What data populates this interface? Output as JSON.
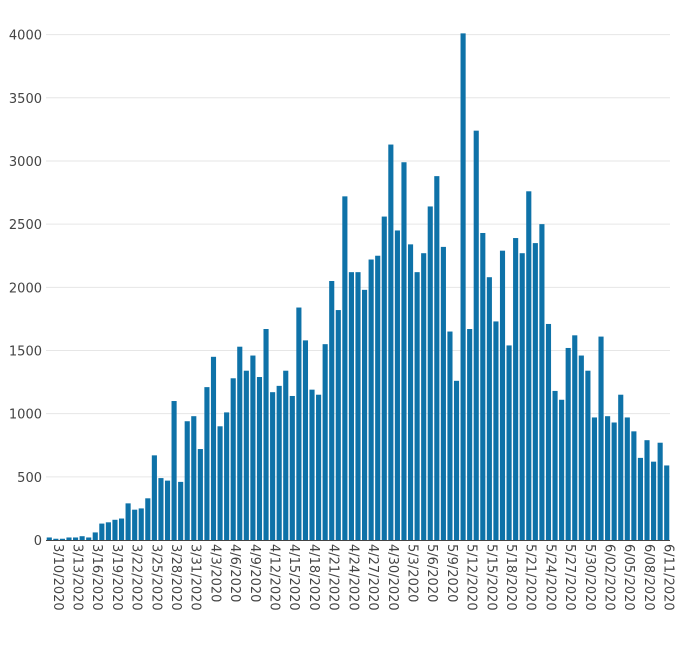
{
  "chart_data": {
    "type": "bar",
    "title": "",
    "xlabel": "",
    "ylabel": "",
    "bar_color": "#0e72a8",
    "grid": true,
    "ylim": [
      0,
      4100
    ],
    "yticks": [
      0,
      500,
      1000,
      1500,
      2000,
      2500,
      3000,
      3500,
      4000
    ],
    "x_tick_labels": [
      "3/10/2020",
      "3/13/2020",
      "3/16/2020",
      "3/19/2020",
      "3/22/2020",
      "3/25/2020",
      "3/28/2020",
      "3/31/2020",
      "4/3/2020",
      "4/6/2020",
      "4/9/2020",
      "4/12/2020",
      "4/15/2020",
      "4/18/2020",
      "4/21/2020",
      "4/24/2020",
      "4/27/2020",
      "4/30/2020",
      "5/3/2020",
      "5/6/2020",
      "5/9/2020",
      "5/12/2020",
      "5/15/2020",
      "5/18/2020",
      "5/21/2020",
      "5/24/2020",
      "5/27/2020",
      "5/30/2020",
      "6/02/2020",
      "6/05/2020",
      "6/08/2020",
      "6/11/2020"
    ],
    "x_start": "3/10/2020",
    "x_end": "6/12/2020",
    "values": [
      20,
      10,
      10,
      20,
      20,
      30,
      20,
      60,
      130,
      140,
      160,
      170,
      290,
      240,
      250,
      330,
      670,
      490,
      470,
      1100,
      460,
      940,
      980,
      720,
      1210,
      1450,
      900,
      1010,
      1280,
      1530,
      1340,
      1460,
      1290,
      1670,
      1170,
      1220,
      1340,
      1140,
      1840,
      1580,
      1190,
      1150,
      1550,
      2050,
      1820,
      2720,
      2120,
      2120,
      1980,
      2220,
      2250,
      2560,
      3130,
      2450,
      2990,
      2340,
      2120,
      2270,
      2640,
      2880,
      2320,
      1650,
      1260,
      4010,
      1670,
      3240,
      2430,
      2080,
      1730,
      2290,
      1540,
      2390,
      2270,
      2760,
      2350,
      2500,
      1710,
      1180,
      1110,
      1520,
      1620,
      1460,
      1340,
      970,
      1610,
      980,
      930,
      1150,
      970,
      860,
      650,
      790,
      620,
      770,
      590
    ]
  }
}
